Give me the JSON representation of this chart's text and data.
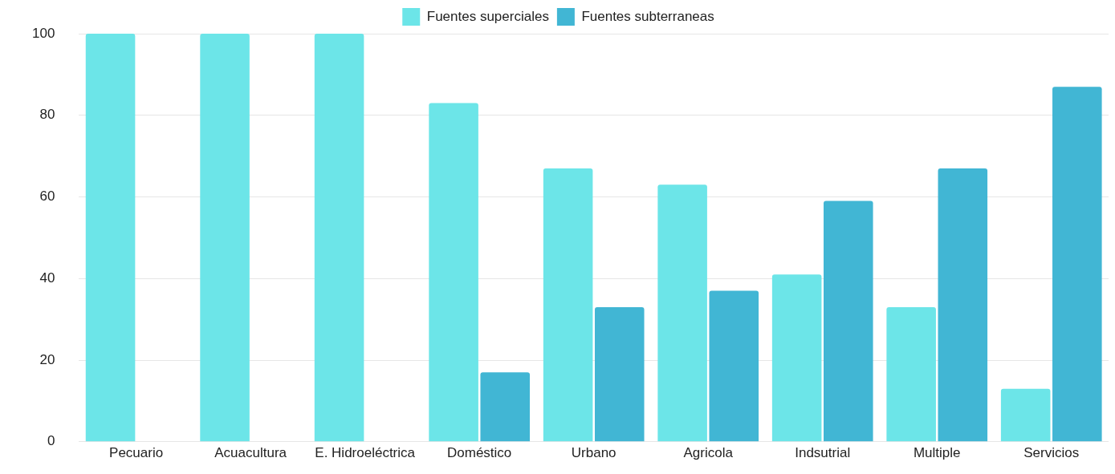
{
  "chart_data": {
    "type": "bar",
    "categories": [
      "Pecuario",
      "Acuacultura",
      "E. Hidroeléctrica",
      "Doméstico",
      "Urbano",
      "Agricola",
      "Indsutrial",
      "Multiple",
      "Servicios"
    ],
    "series": [
      {
        "name": "Fuentes superciales",
        "color": "#6ce5e8",
        "values": [
          100,
          100,
          100,
          83,
          67,
          63,
          41,
          33,
          13
        ]
      },
      {
        "name": "Fuentes subterraneas",
        "color": "#41b6d4",
        "values": [
          0,
          0,
          0,
          17,
          33,
          37,
          59,
          67,
          87
        ]
      }
    ],
    "ylim": [
      0,
      100
    ],
    "yticks": [
      0,
      20,
      40,
      60,
      80,
      100
    ],
    "grid": "y",
    "legend": "top"
  }
}
